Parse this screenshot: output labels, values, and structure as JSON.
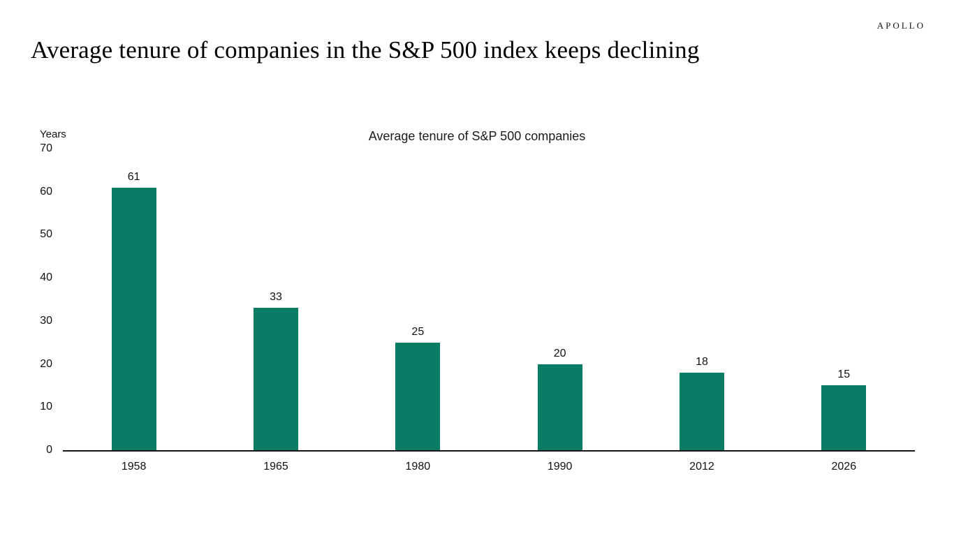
{
  "logo": {
    "text": "APOLLO"
  },
  "header": {
    "title": "Average tenure of companies in the S&P 500 index keeps declining"
  },
  "chart_data": {
    "type": "bar",
    "title": "Average tenure of S&P 500 companies",
    "ylabel": "Years",
    "xlabel": "",
    "categories": [
      "1958",
      "1965",
      "1980",
      "1990",
      "2012",
      "2026"
    ],
    "values": [
      61,
      33,
      25,
      20,
      18,
      15
    ],
    "data_labels": [
      61,
      33,
      25,
      20,
      18,
      15
    ],
    "ylim": [
      0,
      70
    ],
    "yticks": [
      0,
      10,
      20,
      30,
      40,
      50,
      60,
      70
    ],
    "grid": false,
    "legend": "none",
    "bar_color": "#087c64",
    "axis_color": "#161616",
    "text_color": "#111111"
  }
}
